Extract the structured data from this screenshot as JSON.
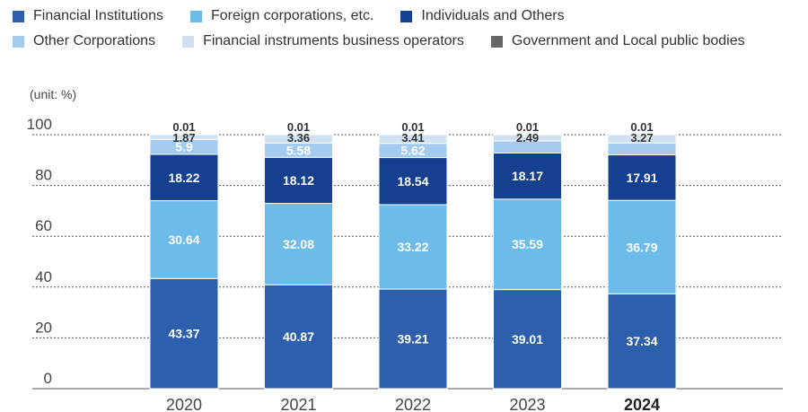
{
  "chart_data": {
    "type": "bar",
    "stacked": true,
    "unit_label": "(unit: %)",
    "categories": [
      "2020",
      "2021",
      "2022",
      "2023",
      "2024"
    ],
    "highlight_category": "2024",
    "ylim": [
      0,
      100
    ],
    "yticks": [
      0,
      20,
      40,
      60,
      80,
      100
    ],
    "grid": true,
    "legend_position": "top",
    "series": [
      {
        "name": "Financial Institutions",
        "color": "#2e5fac",
        "label_color": "#ffffff",
        "values": [
          43.37,
          40.87,
          39.21,
          39.01,
          37.34
        ]
      },
      {
        "name": "Foreign corporations, etc.",
        "color": "#6cbbe9",
        "label_color": "#ffffff",
        "values": [
          30.64,
          32.08,
          33.22,
          35.59,
          36.79
        ]
      },
      {
        "name": "Individuals and Others",
        "color": "#153f8f",
        "label_color": "#ffffff",
        "values": [
          18.22,
          18.12,
          18.54,
          18.17,
          17.91
        ]
      },
      {
        "name": "Other Corporations",
        "color": "#a3cbee",
        "label_color": "#ffffff",
        "values": [
          5.9,
          5.58,
          5.62,
          4.74,
          4.69
        ]
      },
      {
        "name": "Financial instruments business operators",
        "color": "#cfe1f0",
        "label_color": "#333333",
        "values": [
          1.87,
          3.36,
          3.41,
          2.49,
          3.27
        ]
      },
      {
        "name": "Government and Local public bodies",
        "color": "#666666",
        "label_color": "#333333",
        "values": [
          0.01,
          0.01,
          0.01,
          0.01,
          0.01
        ]
      }
    ]
  },
  "legend_rows": [
    [
      0,
      1,
      2
    ],
    [
      3,
      4,
      5
    ]
  ]
}
